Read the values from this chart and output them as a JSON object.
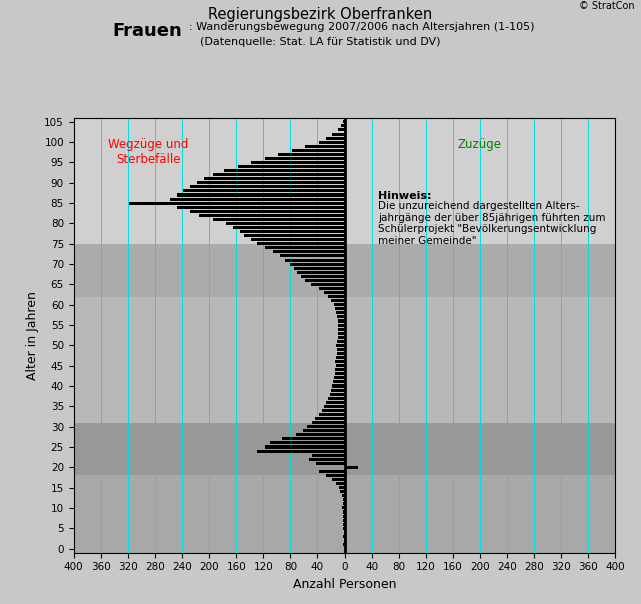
{
  "title_main": "Regierungsbezirk Oberfranken",
  "title_frauen": "Frauen",
  "title_sub1": ": Wanderungsbewegung 2007/2006 nach Altersjahren (1-105)",
  "title_sub2": "(Datenquelle: Stat. LA für Statistik und DV)",
  "xlabel": "Anzahl Personen",
  "ylabel": "Alter in Jahren",
  "copyright": "© StratCon",
  "left_label": "Wegzüge und\nSterbefälle",
  "right_label": "Zuzüge",
  "note_bold": "Hinweis:",
  "note_text": "Die unzureichend dargestellten Alters-\njahrgänge der über 85jährigen führten zum\nSchülerprojekt \"Bevölkerungsentwicklung\nmeiner Gemeinde\"",
  "bg_color": "#c8c8c8",
  "outer_bg": "#c8c8c8",
  "bar_color": "#000000",
  "grid_color": "#00e0e0",
  "band_specs": [
    [
      -1,
      18,
      "#a8a8a8"
    ],
    [
      18,
      31,
      "#989898"
    ],
    [
      31,
      62,
      "#b8b8b8"
    ],
    [
      62,
      75,
      "#ababab"
    ],
    [
      75,
      106,
      "#d0d0d0"
    ]
  ],
  "ages": [
    1,
    2,
    3,
    4,
    5,
    6,
    7,
    8,
    9,
    10,
    11,
    12,
    13,
    14,
    15,
    16,
    17,
    18,
    19,
    20,
    21,
    22,
    23,
    24,
    25,
    26,
    27,
    28,
    29,
    30,
    31,
    32,
    33,
    34,
    35,
    36,
    37,
    38,
    39,
    40,
    41,
    42,
    43,
    44,
    45,
    46,
    47,
    48,
    49,
    50,
    51,
    52,
    53,
    54,
    55,
    56,
    57,
    58,
    59,
    60,
    61,
    62,
    63,
    64,
    65,
    66,
    67,
    68,
    69,
    70,
    71,
    72,
    73,
    74,
    75,
    76,
    77,
    78,
    79,
    80,
    81,
    82,
    83,
    84,
    85,
    86,
    87,
    88,
    89,
    90,
    91,
    92,
    93,
    94,
    95,
    96,
    97,
    98,
    99,
    100,
    101,
    102,
    103,
    104,
    105
  ],
  "values": [
    -2,
    -1,
    -2,
    -1,
    -2,
    -2,
    -2,
    -3,
    -3,
    -4,
    -3,
    -3,
    -4,
    -6,
    -8,
    -12,
    -18,
    -28,
    -38,
    20,
    -42,
    -52,
    -48,
    -130,
    -118,
    -110,
    -92,
    -72,
    -62,
    -55,
    -48,
    -44,
    -38,
    -33,
    -30,
    -27,
    -25,
    -22,
    -20,
    -18,
    -17,
    -16,
    -14,
    -14,
    -13,
    -14,
    -12,
    -11,
    -11,
    -12,
    -11,
    -10,
    -10,
    -10,
    -10,
    -10,
    -11,
    -12,
    -14,
    -16,
    -20,
    -25,
    -30,
    -38,
    -50,
    -58,
    -65,
    -70,
    -75,
    -80,
    -88,
    -95,
    -105,
    -118,
    -130,
    -138,
    -148,
    -155,
    -165,
    -175,
    -195,
    -215,
    -228,
    -248,
    -318,
    -258,
    -248,
    -238,
    -228,
    -218,
    -208,
    -195,
    -178,
    -158,
    -138,
    -118,
    -98,
    -78,
    -58,
    -38,
    -28,
    -18,
    -10,
    -5,
    -2
  ],
  "yticks": [
    0,
    5,
    10,
    15,
    20,
    25,
    30,
    35,
    40,
    45,
    50,
    55,
    60,
    65,
    70,
    75,
    80,
    85,
    90,
    95,
    100,
    105
  ],
  "xtick_step": 40,
  "xlim": 400,
  "figsize": [
    6.41,
    6.04
  ],
  "dpi": 100
}
